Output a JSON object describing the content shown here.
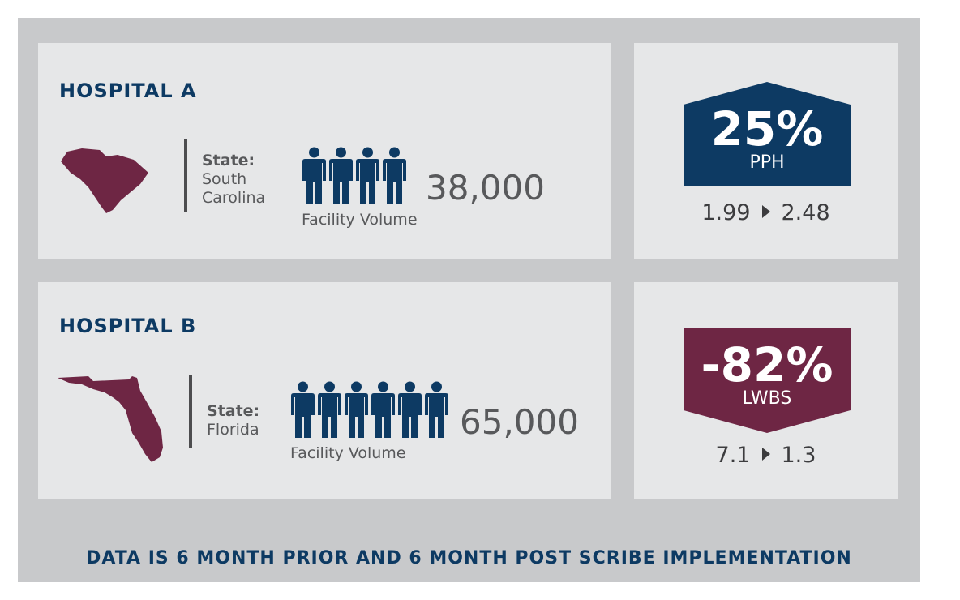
{
  "colors": {
    "navy": "#0d3a63",
    "maroon": "#6e2644",
    "panel": "#e6e7e8",
    "frame": "#c8c9cb"
  },
  "hospitals": [
    {
      "title": "HOSPITAL A",
      "state_label": "State:",
      "state": "South Carolina",
      "state_line1": "South",
      "state_line2": "Carolina",
      "map_icon": "south-carolina-map",
      "people_count": 4,
      "volume": "38,000",
      "volume_label": "Facility Volume",
      "metric": {
        "percent": "25%",
        "name": "PPH",
        "before": "1.99",
        "after": "2.48",
        "direction": "up"
      }
    },
    {
      "title": "HOSPITAL B",
      "state_label": "State:",
      "state": "Florida",
      "state_line1": "Florida",
      "state_line2": "",
      "map_icon": "florida-map",
      "people_count": 6,
      "volume": "65,000",
      "volume_label": "Facility Volume",
      "metric": {
        "percent": "-82%",
        "name": "LWBS",
        "before": "7.1",
        "after": "1.3",
        "direction": "down"
      }
    }
  ],
  "footer": "DATA IS 6 MONTH PRIOR AND 6 MONTH POST SCRIBE IMPLEMENTATION"
}
